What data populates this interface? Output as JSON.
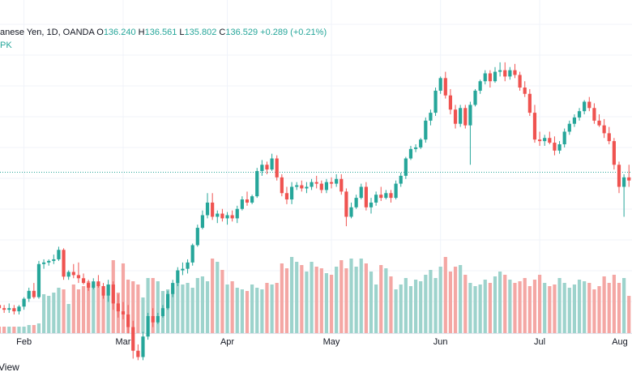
{
  "legend": {
    "symbol": "anese Yen, 1D, OANDA",
    "open_key": "O",
    "open_val": "136.240",
    "high_key": "H",
    "high_val": "136.561",
    "low_key": "L",
    "low_val": "135.802",
    "close_key": "C",
    "close_val": "136.529",
    "change": "+0.289 (+0.21%)",
    "volume_label": "PK"
  },
  "watermark": "View",
  "colors": {
    "up": "#26a69a",
    "down": "#ef5350",
    "up_volume": "#9dd3cc",
    "down_volume": "#f4a7a4",
    "grid": "#f0f3fa",
    "price_line": "#26a69a",
    "text": "#131722"
  },
  "chart_data": {
    "type": "candlestick",
    "x_tick_labels": [
      "Feb",
      "Mar",
      "Apr",
      "May",
      "Jun",
      "Jul",
      "Aug"
    ],
    "price_range": [
      121.5,
      139.5
    ],
    "last_close": 136.529,
    "grid": true,
    "candles": [
      [
        128.1,
        128.4,
        127.7,
        127.9
      ],
      [
        127.9,
        128.1,
        127.6,
        127.8
      ],
      [
        127.8,
        128.2,
        127.6,
        127.9
      ],
      [
        127.9,
        128.1,
        127.5,
        127.7
      ],
      [
        127.7,
        128.1,
        127.5,
        128.0
      ],
      [
        128.0,
        128.6,
        127.8,
        128.5
      ],
      [
        128.5,
        129.2,
        128.3,
        129.0
      ],
      [
        129.0,
        129.5,
        128.5,
        128.6
      ],
      [
        128.6,
        130.9,
        128.5,
        130.7
      ],
      [
        130.7,
        131.0,
        130.4,
        130.8
      ],
      [
        130.8,
        131.0,
        130.6,
        130.9
      ],
      [
        130.9,
        131.3,
        130.7,
        131.0
      ],
      [
        131.0,
        131.8,
        130.9,
        131.6
      ],
      [
        131.6,
        131.7,
        129.7,
        129.9
      ],
      [
        129.9,
        130.3,
        129.7,
        130.2
      ],
      [
        130.2,
        130.7,
        129.8,
        130.0
      ],
      [
        130.0,
        130.8,
        129.5,
        129.8
      ],
      [
        129.8,
        130.1,
        129.4,
        129.5
      ],
      [
        129.5,
        129.7,
        129.0,
        129.2
      ],
      [
        129.2,
        129.8,
        129.1,
        129.6
      ],
      [
        129.6,
        130.0,
        129.2,
        129.3
      ],
      [
        129.3,
        129.5,
        128.5,
        128.7
      ],
      [
        128.7,
        129.7,
        128.3,
        129.4
      ],
      [
        129.4,
        129.6,
        127.8,
        128.2
      ],
      [
        128.2,
        128.8,
        127.3,
        127.7
      ],
      [
        127.7,
        128.3,
        127.2,
        127.5
      ],
      [
        127.5,
        128.1,
        126.3,
        126.7
      ],
      [
        126.7,
        127.1,
        124.7,
        125.2
      ],
      [
        125.2,
        125.6,
        124.6,
        124.8
      ],
      [
        124.8,
        126.4,
        124.6,
        126.1
      ],
      [
        126.1,
        127.6,
        125.9,
        127.4
      ],
      [
        127.4,
        127.9,
        126.7,
        127.0
      ],
      [
        127.0,
        127.6,
        126.9,
        127.4
      ],
      [
        127.4,
        128.1,
        127.3,
        127.9
      ],
      [
        127.9,
        129.0,
        127.8,
        128.8
      ],
      [
        128.8,
        129.7,
        128.6,
        129.5
      ],
      [
        129.5,
        130.5,
        129.3,
        130.3
      ],
      [
        130.3,
        130.8,
        130.0,
        130.4
      ],
      [
        130.4,
        131.0,
        130.1,
        130.8
      ],
      [
        130.8,
        132.0,
        130.6,
        131.9
      ],
      [
        131.9,
        133.2,
        131.8,
        133.0
      ],
      [
        133.0,
        134.1,
        132.9,
        133.8
      ],
      [
        133.8,
        135.2,
        133.6,
        134.6
      ],
      [
        134.6,
        135.2,
        133.5,
        133.7
      ],
      [
        133.7,
        134.1,
        133.3,
        133.9
      ],
      [
        133.9,
        134.2,
        133.4,
        133.6
      ],
      [
        133.6,
        134.0,
        133.2,
        133.8
      ],
      [
        133.8,
        134.1,
        133.4,
        133.6
      ],
      [
        133.6,
        134.4,
        133.3,
        134.2
      ],
      [
        134.2,
        135.0,
        134.1,
        134.8
      ],
      [
        134.8,
        135.3,
        134.4,
        134.6
      ],
      [
        134.6,
        135.1,
        134.5,
        135.0
      ],
      [
        135.0,
        136.8,
        134.9,
        136.6
      ],
      [
        136.6,
        137.3,
        136.3,
        137.0
      ],
      [
        137.0,
        137.2,
        136.4,
        136.7
      ],
      [
        136.7,
        137.7,
        136.6,
        137.4
      ],
      [
        137.4,
        137.6,
        136.0,
        136.2
      ],
      [
        136.2,
        136.4,
        135.0,
        135.2
      ],
      [
        135.2,
        135.6,
        134.5,
        134.8
      ],
      [
        134.8,
        135.9,
        134.5,
        135.6
      ],
      [
        135.6,
        135.9,
        135.4,
        135.7
      ],
      [
        135.7,
        136.0,
        135.3,
        135.5
      ],
      [
        135.5,
        135.9,
        135.2,
        135.6
      ],
      [
        135.6,
        136.1,
        135.4,
        135.9
      ],
      [
        135.9,
        136.3,
        135.5,
        135.8
      ],
      [
        135.8,
        136.0,
        135.2,
        135.4
      ],
      [
        135.4,
        136.1,
        135.2,
        135.9
      ],
      [
        135.9,
        136.2,
        135.5,
        135.8
      ],
      [
        135.8,
        136.4,
        135.6,
        136.1
      ],
      [
        136.1,
        136.4,
        135.1,
        135.3
      ],
      [
        135.3,
        135.5,
        133.1,
        133.7
      ],
      [
        133.7,
        134.6,
        133.6,
        134.3
      ],
      [
        134.3,
        135.1,
        134.2,
        134.9
      ],
      [
        134.9,
        135.8,
        134.8,
        135.6
      ],
      [
        135.6,
        135.9,
        134.1,
        134.3
      ],
      [
        134.3,
        134.9,
        133.9,
        134.6
      ],
      [
        134.6,
        135.3,
        134.4,
        135.1
      ],
      [
        135.1,
        135.6,
        134.7,
        134.9
      ],
      [
        134.9,
        135.4,
        134.8,
        135.2
      ],
      [
        135.2,
        135.4,
        134.6,
        134.9
      ],
      [
        134.9,
        136.0,
        134.8,
        135.8
      ],
      [
        135.8,
        136.5,
        135.6,
        136.3
      ],
      [
        136.3,
        137.5,
        136.1,
        137.4
      ],
      [
        137.4,
        138.2,
        137.3,
        138.0
      ],
      [
        138.0,
        138.3,
        137.8,
        138.1
      ],
      [
        138.1,
        138.7,
        138.0,
        138.6
      ],
      [
        138.6,
        140.0,
        138.4,
        139.8
      ],
      [
        139.8,
        140.5,
        139.5,
        140.3
      ],
      [
        140.3,
        141.9,
        140.1,
        141.7
      ],
      [
        141.7,
        142.6,
        141.5,
        142.5
      ],
      [
        142.5,
        142.9,
        141.2,
        141.4
      ],
      [
        141.4,
        141.8,
        140.2,
        140.5
      ],
      [
        140.5,
        140.8,
        139.3,
        139.6
      ],
      [
        139.6,
        140.8,
        139.4,
        140.6
      ],
      [
        140.6,
        140.8,
        139.3,
        139.5
      ],
      [
        139.5,
        141.0,
        137.0,
        140.8
      ],
      [
        140.8,
        141.8,
        140.7,
        141.7
      ],
      [
        141.7,
        142.4,
        141.5,
        142.3
      ],
      [
        142.3,
        143.0,
        142.1,
        142.8
      ],
      [
        142.8,
        143.0,
        141.9,
        142.3
      ],
      [
        142.3,
        143.2,
        142.2,
        142.9
      ],
      [
        142.9,
        143.5,
        142.6,
        143.0
      ],
      [
        143.0,
        143.5,
        142.3,
        142.6
      ],
      [
        142.6,
        143.2,
        142.4,
        143.0
      ],
      [
        143.0,
        143.4,
        142.5,
        142.7
      ],
      [
        142.7,
        142.9,
        141.7,
        141.9
      ],
      [
        141.9,
        142.3,
        141.3,
        141.5
      ],
      [
        141.5,
        141.8,
        140.1,
        140.3
      ],
      [
        140.3,
        140.8,
        138.4,
        138.6
      ],
      [
        138.6,
        139.1,
        138.2,
        138.5
      ],
      [
        138.5,
        138.9,
        138.2,
        138.7
      ],
      [
        138.7,
        139.1,
        138.3,
        138.4
      ],
      [
        138.4,
        138.8,
        137.6,
        137.9
      ],
      [
        137.9,
        138.5,
        137.7,
        138.3
      ],
      [
        138.3,
        139.3,
        138.1,
        139.1
      ],
      [
        139.1,
        139.8,
        138.9,
        139.6
      ],
      [
        139.6,
        140.2,
        139.4,
        140.0
      ],
      [
        140.0,
        140.6,
        139.8,
        140.4
      ],
      [
        140.4,
        141.1,
        140.2,
        141.0
      ],
      [
        141.0,
        141.3,
        140.4,
        140.6
      ],
      [
        140.6,
        140.9,
        139.6,
        139.8
      ],
      [
        139.8,
        140.2,
        139.4,
        139.5
      ],
      [
        139.5,
        139.9,
        138.7,
        139.0
      ],
      [
        139.0,
        139.4,
        138.3,
        138.5
      ],
      [
        138.5,
        138.7,
        136.7,
        137.0
      ],
      [
        137.0,
        137.2,
        135.2,
        135.6
      ],
      [
        135.6,
        136.4,
        133.7,
        136.2
      ],
      [
        136.2,
        137.0,
        135.6,
        136.0
      ],
      [
        136.24,
        136.56,
        135.8,
        136.53
      ]
    ],
    "volume": [
      4,
      4,
      4,
      4,
      4,
      4,
      5,
      5,
      6,
      24,
      23,
      25,
      28,
      27,
      18,
      30,
      27,
      29,
      32,
      30,
      31,
      29,
      30,
      45,
      25,
      43,
      33,
      32,
      30,
      22,
      34,
      34,
      32,
      26,
      27,
      28,
      31,
      30,
      31,
      28,
      34,
      35,
      32,
      46,
      44,
      39,
      30,
      32,
      28,
      27,
      26,
      30,
      28,
      27,
      31,
      30,
      31,
      43,
      40,
      47,
      44,
      42,
      38,
      44,
      41,
      40,
      37,
      36,
      41,
      45,
      40,
      46,
      41,
      46,
      43,
      38,
      30,
      42,
      40,
      35,
      27,
      30,
      34,
      29,
      33,
      32,
      36,
      39,
      34,
      41,
      47,
      38,
      41,
      42,
      36,
      31,
      29,
      30,
      33,
      31,
      35,
      38,
      36,
      33,
      31,
      32,
      34,
      29,
      33,
      36,
      31,
      29,
      30,
      34,
      31,
      28,
      30,
      33,
      32,
      31,
      27,
      29,
      35,
      31,
      36,
      31,
      34,
      23,
      36
    ]
  }
}
